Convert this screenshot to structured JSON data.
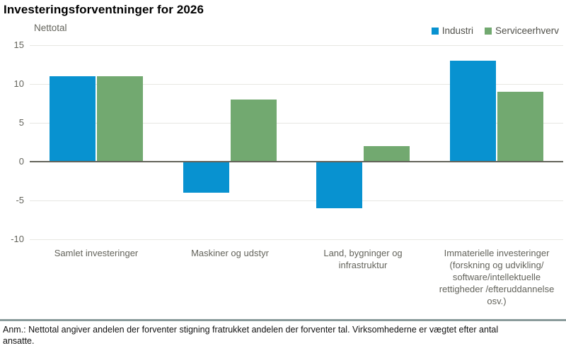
{
  "title": "Investeringsforventninger for 2026",
  "axis_unit_label": "Nettotal",
  "legend": [
    {
      "label": "Industri",
      "color": "#0892d0"
    },
    {
      "label": "Serviceerhverv",
      "color": "#72a970"
    }
  ],
  "footnote": "Anm.: Nettotal angiver andelen der forventer stigning fratrukket andelen der forventer tal. Virksomhederne er vægtet efter antal ansatte.",
  "colors": {
    "industri": "#0892d0",
    "serviceerhverv": "#72a970",
    "gridline": "#e7e7e2",
    "zero_line": "#63635a",
    "axis_text": "#63635b",
    "separator": "#8a9b9b"
  },
  "chart_data": {
    "type": "bar",
    "title": "Investeringsforventninger for 2026",
    "ylabel": "Nettotal",
    "categories": [
      "Samlet investeringer",
      "Maskiner og udstyr",
      "Land, bygninger og\ninfrastruktur",
      "Immaterielle investeringer\n(forskning og udvikling/\nsoftware/intellektuelle\nrettigheder /efteruddannelse\nosv.)"
    ],
    "series": [
      {
        "name": "Industri",
        "color": "#0892d0",
        "values": [
          11,
          -4,
          -6,
          13
        ]
      },
      {
        "name": "Serviceerhverv",
        "color": "#72a970",
        "values": [
          11,
          8,
          2,
          9
        ]
      }
    ],
    "ylim": [
      -10,
      15
    ],
    "yticks": [
      15,
      10,
      5,
      0,
      -5,
      -10
    ],
    "grid": true,
    "legend_position": "top-right"
  }
}
